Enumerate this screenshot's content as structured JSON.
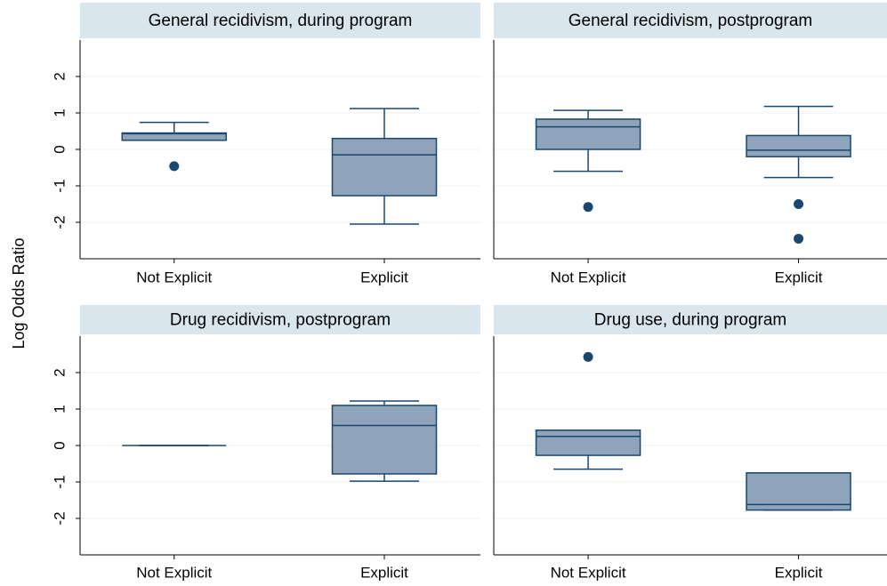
{
  "y_label": "Log Odds Ratio",
  "chart_data": [
    {
      "type": "box",
      "title": "General recidivism, during program",
      "categories": [
        "Not Explicit",
        "Explicit"
      ],
      "boxes": [
        {
          "min": 0.25,
          "q1": 0.25,
          "median": 0.43,
          "q3": 0.45,
          "max": 0.74,
          "outliers": [
            -0.46
          ]
        },
        {
          "min": -2.05,
          "q1": -1.27,
          "median": -0.15,
          "q3": 0.3,
          "max": 1.12,
          "outliers": []
        }
      ],
      "color": "#8fa4bb",
      "line_color": "#1a476f",
      "ylim": [
        -3,
        3
      ],
      "yticks": [
        -2,
        -1,
        0,
        1,
        2
      ],
      "grid": true
    },
    {
      "type": "box",
      "title": "General recidivism, postprogram",
      "categories": [
        "Not Explicit",
        "Explicit"
      ],
      "boxes": [
        {
          "min": -0.6,
          "q1": 0.0,
          "median": 0.62,
          "q3": 0.83,
          "max": 1.07,
          "outliers": [
            -1.58
          ]
        },
        {
          "min": -0.77,
          "q1": -0.2,
          "median": -0.02,
          "q3": 0.38,
          "max": 1.18,
          "outliers": [
            -1.5,
            -2.45
          ]
        }
      ],
      "color": "#8fa4bb",
      "line_color": "#1a476f",
      "ylim": [
        -3,
        3
      ],
      "yticks": [
        -2,
        -1,
        0,
        1,
        2
      ],
      "grid": true
    },
    {
      "type": "box",
      "title": "Drug recidivism, postprogram",
      "categories": [
        "Not Explicit",
        "Explicit"
      ],
      "boxes": [
        {
          "min": 0,
          "q1": 0,
          "median": 0,
          "q3": 0,
          "max": 0,
          "outliers": []
        },
        {
          "min": -0.98,
          "q1": -0.78,
          "median": 0.55,
          "q3": 1.1,
          "max": 1.22,
          "outliers": []
        }
      ],
      "color": "#8fa4bb",
      "line_color": "#1a476f",
      "ylim": [
        -3,
        3
      ],
      "yticks": [
        -2,
        -1,
        0,
        1,
        2
      ],
      "grid": true
    },
    {
      "type": "box",
      "title": "Drug use, during program",
      "categories": [
        "Not Explicit",
        "Explicit"
      ],
      "boxes": [
        {
          "min": -0.65,
          "q1": -0.27,
          "median": 0.25,
          "q3": 0.42,
          "max": 0.42,
          "outliers": [
            2.43
          ]
        },
        {
          "min": -1.77,
          "q1": -1.77,
          "median": -1.62,
          "q3": -0.75,
          "max": -0.75,
          "outliers": []
        }
      ],
      "color": "#8fa4bb",
      "line_color": "#1a476f",
      "ylim": [
        -3,
        3
      ],
      "yticks": [
        -2,
        -1,
        0,
        1,
        2
      ],
      "grid": true
    }
  ]
}
